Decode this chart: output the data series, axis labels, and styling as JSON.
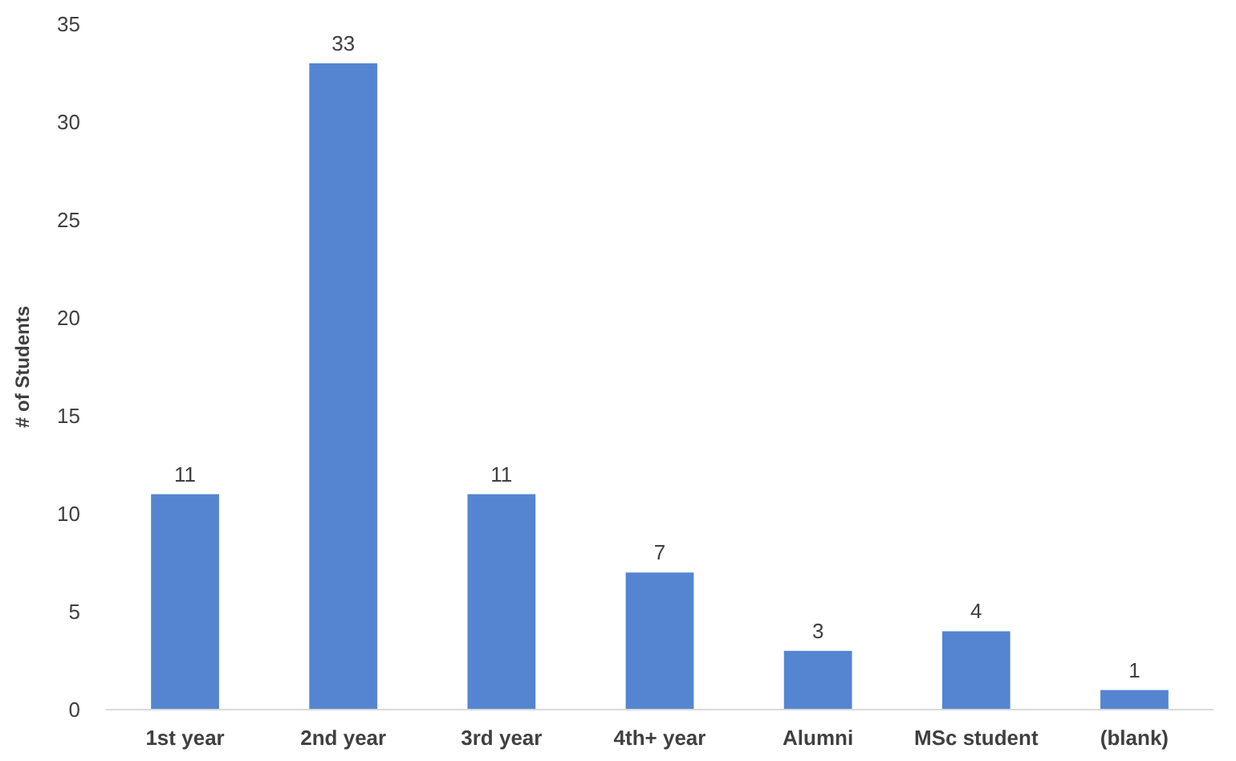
{
  "chart_data": {
    "type": "bar",
    "ylabel": "# of Students",
    "categories": [
      "1st year",
      "2nd year",
      "3rd year",
      "4th+ year",
      "Alumni",
      "MSc student",
      "(blank)"
    ],
    "values": [
      11,
      33,
      11,
      7,
      3,
      4,
      1
    ],
    "color": "#5585d1",
    "ylim": [
      0,
      35
    ],
    "yticks": [
      0,
      5,
      10,
      15,
      20,
      25,
      30,
      35
    ],
    "grid": false,
    "data_labels": true
  }
}
